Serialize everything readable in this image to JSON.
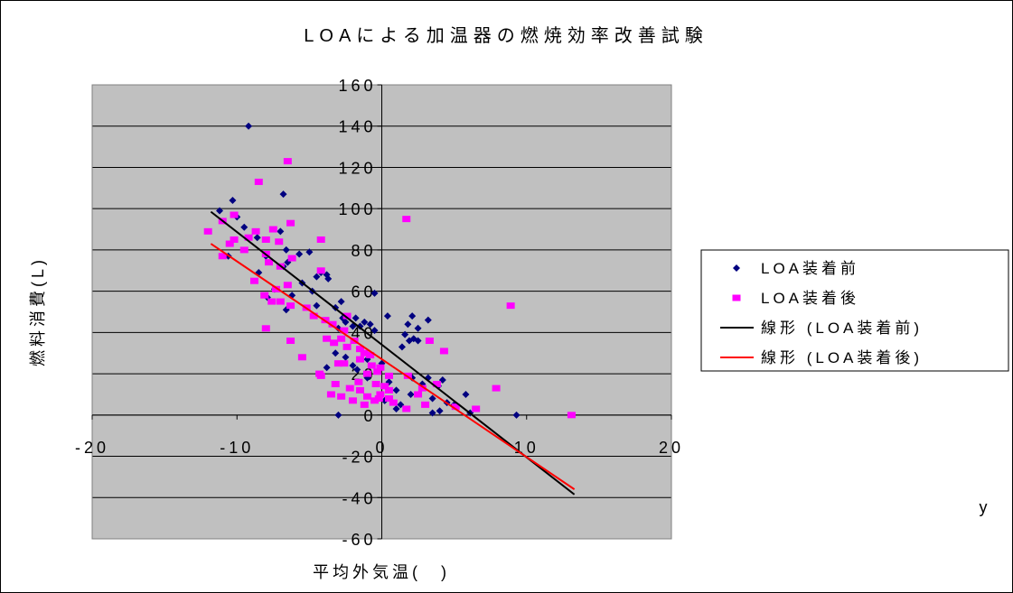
{
  "chart_data": {
    "type": "scatter",
    "title": "LOAによる加温器の燃焼効率改善試験",
    "xlabel": "平均外気温(　)",
    "ylabel": "燃料消費(L)",
    "corner_label": "y",
    "xlim": [
      -20,
      20
    ],
    "ylim": [
      -60,
      160
    ],
    "x_ticks": [
      -20,
      -10,
      0,
      10,
      20
    ],
    "x_tick_labels": [
      "-20",
      "-10",
      "0",
      "10",
      "20"
    ],
    "y_ticks": [
      -60,
      -40,
      -20,
      0,
      20,
      40,
      60,
      80,
      100,
      120,
      140,
      160
    ],
    "y_tick_labels": [
      "-60",
      "-40",
      "-20",
      "0",
      "20",
      "40",
      "60",
      "80",
      "100",
      "120",
      "140",
      "160"
    ],
    "grid": "horizontal",
    "plot_background": "#c0c0c0",
    "legend_position": "right",
    "series": [
      {
        "name": "LOA装着前",
        "marker": "diamond",
        "color": "#000080",
        "points": [
          [
            -9.2,
            140
          ],
          [
            -10.3,
            104
          ],
          [
            -11.2,
            99
          ],
          [
            -10,
            96
          ],
          [
            -6.8,
            107
          ],
          [
            -9.5,
            91
          ],
          [
            -8.6,
            86
          ],
          [
            -7,
            89
          ],
          [
            -6.6,
            80
          ],
          [
            -5.7,
            78
          ],
          [
            -5,
            79
          ],
          [
            -8,
            77
          ],
          [
            -10.6,
            77
          ],
          [
            -6.5,
            74
          ],
          [
            -6.8,
            72
          ],
          [
            -4.2,
            69
          ],
          [
            -3.8,
            68
          ],
          [
            -4.5,
            67
          ],
          [
            -3.7,
            66
          ],
          [
            -5.5,
            64
          ],
          [
            -8.5,
            69
          ],
          [
            -7.4,
            61
          ],
          [
            -4.8,
            60
          ],
          [
            -0.5,
            59
          ],
          [
            -6.2,
            58
          ],
          [
            -7.9,
            57
          ],
          [
            -2.8,
            55
          ],
          [
            -4.5,
            53
          ],
          [
            -3.2,
            52
          ],
          [
            -6.6,
            51
          ],
          [
            0.4,
            48
          ],
          [
            -2.7,
            47
          ],
          [
            -1.8,
            47
          ],
          [
            -2.5,
            45
          ],
          [
            -1.2,
            45
          ],
          [
            -0.8,
            44
          ],
          [
            -2,
            43
          ],
          [
            -1.5,
            43
          ],
          [
            -3,
            42
          ],
          [
            -0.5,
            41
          ],
          [
            2.1,
            48
          ],
          [
            3.2,
            46
          ],
          [
            1.8,
            44
          ],
          [
            2.5,
            42
          ],
          [
            1.6,
            39
          ],
          [
            2.2,
            37
          ],
          [
            1.9,
            36
          ],
          [
            2.5,
            36
          ],
          [
            1.4,
            33
          ],
          [
            -3.2,
            30
          ],
          [
            -2.5,
            28
          ],
          [
            -1,
            27
          ],
          [
            0,
            25
          ],
          [
            -2,
            24
          ],
          [
            -3.8,
            23
          ],
          [
            -1.7,
            22
          ],
          [
            -1.1,
            20
          ],
          [
            3.2,
            18
          ],
          [
            4.2,
            17
          ],
          [
            2.1,
            18
          ],
          [
            2.8,
            15
          ],
          [
            3.9,
            14
          ],
          [
            1,
            12
          ],
          [
            2,
            10
          ],
          [
            5.8,
            10
          ],
          [
            3.5,
            8
          ],
          [
            4.5,
            6
          ],
          [
            5,
            5
          ],
          [
            1.3,
            5
          ],
          [
            1,
            3
          ],
          [
            4,
            2
          ],
          [
            3.5,
            1
          ],
          [
            6.1,
            1
          ],
          [
            -3,
            0
          ],
          [
            9.3,
            0
          ],
          [
            0.2,
            7
          ],
          [
            -1,
            18
          ],
          [
            0.5,
            16
          ]
        ]
      },
      {
        "name": "LOA装着後",
        "marker": "square",
        "color": "#ff00ff",
        "points": [
          [
            -6.5,
            123
          ],
          [
            -8.5,
            113
          ],
          [
            1.7,
            95
          ],
          [
            -10.2,
            97
          ],
          [
            -11,
            94
          ],
          [
            -6.3,
            93
          ],
          [
            -12,
            89
          ],
          [
            -7.5,
            90
          ],
          [
            -8.7,
            89
          ],
          [
            -9.2,
            86
          ],
          [
            -10.2,
            85
          ],
          [
            -8,
            85
          ],
          [
            -7.1,
            84
          ],
          [
            -4.2,
            85
          ],
          [
            -10.5,
            83
          ],
          [
            -9.5,
            80
          ],
          [
            -8,
            78
          ],
          [
            -11,
            77
          ],
          [
            -6.2,
            76
          ],
          [
            -7.8,
            74
          ],
          [
            -7,
            72
          ],
          [
            -4.2,
            70
          ],
          [
            -8.8,
            65
          ],
          [
            -6.5,
            63
          ],
          [
            -7.3,
            61
          ],
          [
            -8.1,
            58
          ],
          [
            -7.6,
            55
          ],
          [
            -7,
            55
          ],
          [
            -6.3,
            53
          ],
          [
            -5.2,
            52
          ],
          [
            -4.7,
            48
          ],
          [
            -3.9,
            46
          ],
          [
            -2.4,
            48
          ],
          [
            -3.4,
            44
          ],
          [
            -2.6,
            41
          ],
          [
            -8,
            42
          ],
          [
            -6.3,
            36
          ],
          [
            -3.8,
            37
          ],
          [
            -2.8,
            37
          ],
          [
            -1.9,
            36
          ],
          [
            -3.3,
            35
          ],
          [
            -2.4,
            33
          ],
          [
            -1.5,
            32
          ],
          [
            -1.2,
            30
          ],
          [
            -0.8,
            29
          ],
          [
            -1.5,
            27
          ],
          [
            -3,
            25
          ],
          [
            -2.6,
            25
          ],
          [
            -5.5,
            28
          ],
          [
            -0.7,
            24
          ],
          [
            -1,
            20
          ],
          [
            -0.3,
            21
          ],
          [
            -4.3,
            20
          ],
          [
            -4.2,
            19
          ],
          [
            0.5,
            19
          ],
          [
            1.8,
            19
          ],
          [
            -1.6,
            16
          ],
          [
            -0.4,
            15
          ],
          [
            0.2,
            14
          ],
          [
            -3.2,
            15
          ],
          [
            -2.2,
            13
          ],
          [
            0.5,
            12
          ],
          [
            -1.5,
            12
          ],
          [
            -0.1,
            10
          ],
          [
            -3.5,
            10
          ],
          [
            -2.8,
            9
          ],
          [
            -1,
            9
          ],
          [
            -0.2,
            8
          ],
          [
            0.5,
            8
          ],
          [
            -0.5,
            7
          ],
          [
            0.8,
            6
          ],
          [
            -1.2,
            5
          ],
          [
            2.5,
            10
          ],
          [
            2.8,
            13
          ],
          [
            3.8,
            15
          ],
          [
            3,
            5
          ],
          [
            4.3,
            31
          ],
          [
            3.3,
            36
          ],
          [
            5.1,
            4
          ],
          [
            6.5,
            3
          ],
          [
            7.9,
            13
          ],
          [
            8.9,
            53
          ],
          [
            13.1,
            0
          ],
          [
            1.7,
            3
          ],
          [
            -2,
            7
          ],
          [
            -0.1,
            23
          ]
        ]
      },
      {
        "name": "線形 (LOA装着前)",
        "type": "line",
        "color": "#000000",
        "points": [
          [
            -11.8,
            98.5
          ],
          [
            13.3,
            -38.5
          ]
        ]
      },
      {
        "name": "線形 (LOA装着後)",
        "type": "line",
        "color": "#ff0000",
        "points": [
          [
            -11.8,
            83
          ],
          [
            13.3,
            -36
          ]
        ]
      }
    ]
  }
}
